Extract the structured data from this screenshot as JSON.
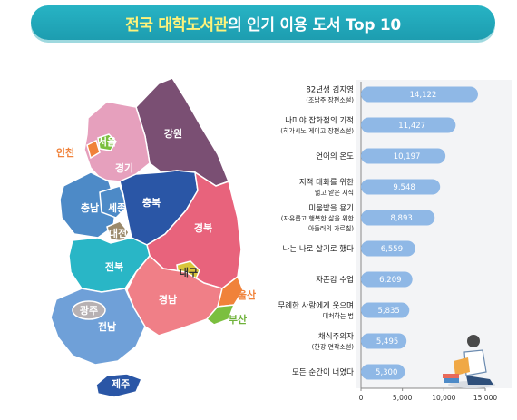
{
  "header": {
    "title_highlight": "전국 대학도서관",
    "title_rest": "의 인기 이용 도서 Top 10"
  },
  "map": {
    "regions": [
      {
        "name": "강원",
        "color": "#7a4f73"
      },
      {
        "name": "경기",
        "color": "#e6a0bd"
      },
      {
        "name": "서울",
        "color": "#7bbf3f"
      },
      {
        "name": "인천",
        "color": "#f0823a"
      },
      {
        "name": "충북",
        "color": "#2a56a6"
      },
      {
        "name": "충남",
        "color": "#4d8ac7"
      },
      {
        "name": "세종",
        "color": "#4d8ac7"
      },
      {
        "name": "대전",
        "color": "#9b8a6b"
      },
      {
        "name": "경북",
        "color": "#e8637c"
      },
      {
        "name": "대구",
        "color": "#d8c53a"
      },
      {
        "name": "전북",
        "color": "#29b6c6"
      },
      {
        "name": "경남",
        "color": "#f07f87"
      },
      {
        "name": "울산",
        "color": "#f0823a"
      },
      {
        "name": "부산",
        "color": "#7bbf3f"
      },
      {
        "name": "광주",
        "color": "#b7b1b3"
      },
      {
        "name": "전남",
        "color": "#6fa0d8"
      },
      {
        "name": "제주",
        "color": "#2a56a6"
      }
    ]
  },
  "chart_data": {
    "type": "bar",
    "orientation": "horizontal",
    "categories": [
      {
        "line1": "82년생 김지영",
        "line2": "(조남주 장편소설)"
      },
      {
        "line1": "나미야 잡화점의 기적",
        "line2": "(히가시노 게이고 장편소설)"
      },
      {
        "line1": "언어의 온도",
        "line2": ""
      },
      {
        "line1": "지적 대화를 위한",
        "line2": "넓고 얕은 지식"
      },
      {
        "line1": "미움받을 용기",
        "line2": "(자유롭고 행복한 삶을 위한",
        "line3": "아들러의 가르침)"
      },
      {
        "line1": "나는 나로 살기로 했다",
        "line2": ""
      },
      {
        "line1": "자존감 수업",
        "line2": ""
      },
      {
        "line1": "무례한 사람에게 웃으며",
        "line2": "대처하는 법"
      },
      {
        "line1": "채식주의자",
        "line2": "(한강 연작소설)"
      },
      {
        "line1": "모든 순간이 너였다",
        "line2": ""
      }
    ],
    "values": [
      14122,
      11427,
      10197,
      9548,
      8893,
      6559,
      6209,
      5835,
      5495,
      5300
    ],
    "value_labels": [
      "14,122",
      "11,427",
      "10,197",
      "9,548",
      "8,893",
      "6,559",
      "6,209",
      "5,835",
      "5,495",
      "5,300"
    ],
    "xlim": [
      0,
      15000
    ],
    "xticks": [
      "0",
      "5,000",
      "10,000",
      "15,000"
    ],
    "xtick_values": [
      0,
      5000,
      10000,
      15000
    ],
    "bar_color": "#8fb8e6"
  }
}
